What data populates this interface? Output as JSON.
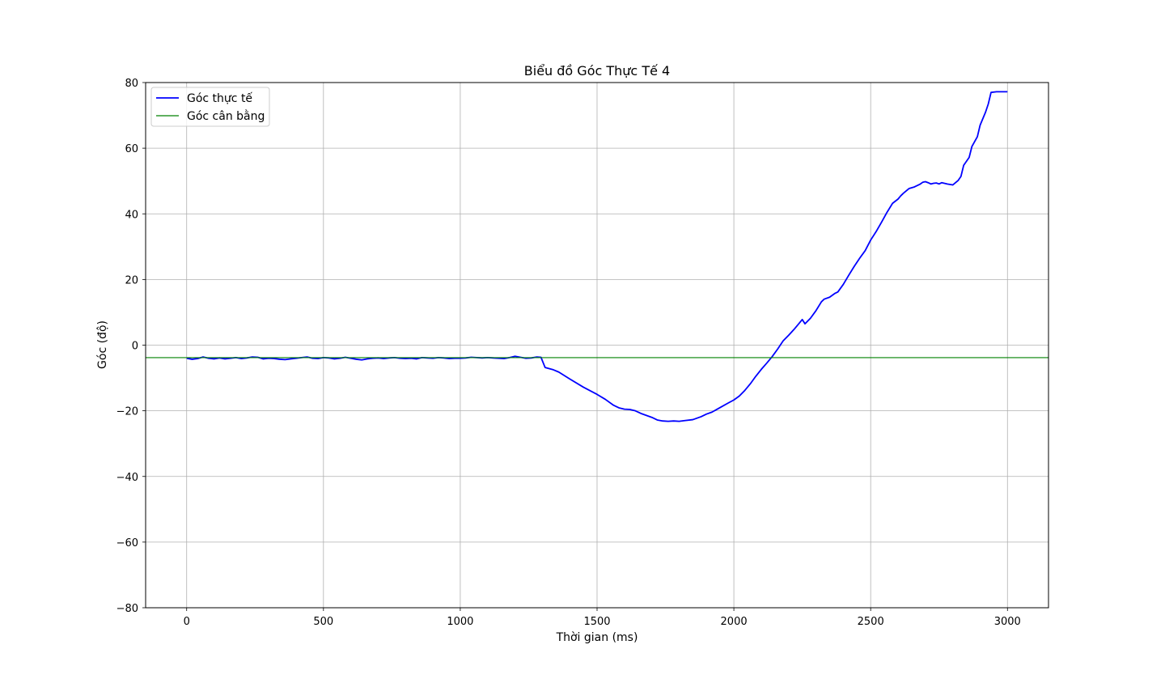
{
  "chart_data": {
    "type": "line",
    "title": "Biểu đồ Góc Thực Tế 4",
    "xlabel": "Thời gian (ms)",
    "ylabel": "Góc (độ)",
    "xlim": [
      -150,
      3150
    ],
    "ylim": [
      -80,
      80
    ],
    "xticks": [
      0,
      500,
      1000,
      1500,
      2000,
      2500,
      3000
    ],
    "yticks": [
      -80,
      -60,
      -40,
      -20,
      0,
      20,
      40,
      60,
      80
    ],
    "grid": true,
    "legend_position": "top-left",
    "series": [
      {
        "name": "Góc thực tế",
        "color": "#0000ff",
        "points": [
          [
            0,
            -4.0
          ],
          [
            20,
            -4.3
          ],
          [
            40,
            -4.1
          ],
          [
            60,
            -3.6
          ],
          [
            80,
            -4.0
          ],
          [
            100,
            -4.2
          ],
          [
            120,
            -3.9
          ],
          [
            140,
            -4.2
          ],
          [
            160,
            -4.0
          ],
          [
            180,
            -3.8
          ],
          [
            200,
            -4.1
          ],
          [
            220,
            -3.9
          ],
          [
            240,
            -3.6
          ],
          [
            260,
            -3.7
          ],
          [
            280,
            -4.2
          ],
          [
            300,
            -4.0
          ],
          [
            320,
            -4.1
          ],
          [
            340,
            -4.3
          ],
          [
            360,
            -4.4
          ],
          [
            380,
            -4.2
          ],
          [
            400,
            -4.0
          ],
          [
            420,
            -3.8
          ],
          [
            440,
            -3.6
          ],
          [
            460,
            -4.0
          ],
          [
            480,
            -4.1
          ],
          [
            500,
            -3.8
          ],
          [
            520,
            -3.9
          ],
          [
            540,
            -4.2
          ],
          [
            560,
            -4.0
          ],
          [
            580,
            -3.7
          ],
          [
            600,
            -4.0
          ],
          [
            620,
            -4.3
          ],
          [
            640,
            -4.5
          ],
          [
            660,
            -4.2
          ],
          [
            680,
            -4.0
          ],
          [
            700,
            -3.9
          ],
          [
            720,
            -4.1
          ],
          [
            740,
            -3.9
          ],
          [
            760,
            -3.8
          ],
          [
            780,
            -4.0
          ],
          [
            800,
            -4.1
          ],
          [
            820,
            -4.0
          ],
          [
            840,
            -4.2
          ],
          [
            860,
            -3.8
          ],
          [
            880,
            -3.9
          ],
          [
            900,
            -4.0
          ],
          [
            920,
            -3.8
          ],
          [
            940,
            -3.9
          ],
          [
            960,
            -4.1
          ],
          [
            980,
            -4.0
          ],
          [
            1000,
            -4.0
          ],
          [
            1020,
            -3.9
          ],
          [
            1040,
            -3.7
          ],
          [
            1060,
            -3.8
          ],
          [
            1080,
            -3.9
          ],
          [
            1100,
            -3.8
          ],
          [
            1120,
            -3.9
          ],
          [
            1140,
            -4.0
          ],
          [
            1160,
            -4.1
          ],
          [
            1180,
            -3.8
          ],
          [
            1200,
            -3.4
          ],
          [
            1220,
            -3.7
          ],
          [
            1240,
            -4.0
          ],
          [
            1260,
            -3.9
          ],
          [
            1280,
            -3.6
          ],
          [
            1295,
            -3.7
          ],
          [
            1310,
            -6.8
          ],
          [
            1340,
            -7.5
          ],
          [
            1360,
            -8.2
          ],
          [
            1400,
            -10.3
          ],
          [
            1450,
            -12.8
          ],
          [
            1500,
            -15.0
          ],
          [
            1530,
            -16.5
          ],
          [
            1560,
            -18.3
          ],
          [
            1580,
            -19.1
          ],
          [
            1600,
            -19.5
          ],
          [
            1620,
            -19.6
          ],
          [
            1640,
            -20.0
          ],
          [
            1660,
            -20.8
          ],
          [
            1700,
            -22.0
          ],
          [
            1720,
            -22.8
          ],
          [
            1740,
            -23.1
          ],
          [
            1760,
            -23.2
          ],
          [
            1780,
            -23.1
          ],
          [
            1800,
            -23.2
          ],
          [
            1820,
            -23.0
          ],
          [
            1850,
            -22.7
          ],
          [
            1880,
            -21.8
          ],
          [
            1900,
            -21.0
          ],
          [
            1920,
            -20.4
          ],
          [
            1950,
            -19.0
          ],
          [
            1980,
            -17.6
          ],
          [
            2000,
            -16.7
          ],
          [
            2020,
            -15.5
          ],
          [
            2040,
            -13.8
          ],
          [
            2060,
            -11.8
          ],
          [
            2080,
            -9.5
          ],
          [
            2100,
            -7.4
          ],
          [
            2120,
            -5.5
          ],
          [
            2140,
            -3.5
          ],
          [
            2160,
            -1.2
          ],
          [
            2180,
            1.3
          ],
          [
            2200,
            3.0
          ],
          [
            2220,
            4.8
          ],
          [
            2240,
            6.8
          ],
          [
            2250,
            7.8
          ],
          [
            2260,
            6.5
          ],
          [
            2280,
            8.2
          ],
          [
            2300,
            10.5
          ],
          [
            2320,
            13.2
          ],
          [
            2330,
            14.0
          ],
          [
            2350,
            14.6
          ],
          [
            2370,
            15.8
          ],
          [
            2380,
            16.2
          ],
          [
            2400,
            18.5
          ],
          [
            2420,
            21.3
          ],
          [
            2440,
            24.0
          ],
          [
            2460,
            26.5
          ],
          [
            2480,
            28.8
          ],
          [
            2500,
            32.0
          ],
          [
            2520,
            34.6
          ],
          [
            2540,
            37.5
          ],
          [
            2560,
            40.5
          ],
          [
            2580,
            43.2
          ],
          [
            2600,
            44.5
          ],
          [
            2610,
            45.5
          ],
          [
            2620,
            46.3
          ],
          [
            2640,
            47.7
          ],
          [
            2660,
            48.2
          ],
          [
            2680,
            49.0
          ],
          [
            2690,
            49.6
          ],
          [
            2700,
            49.8
          ],
          [
            2710,
            49.5
          ],
          [
            2720,
            49.1
          ],
          [
            2730,
            49.3
          ],
          [
            2740,
            49.4
          ],
          [
            2750,
            49.1
          ],
          [
            2760,
            49.5
          ],
          [
            2780,
            49.1
          ],
          [
            2800,
            48.8
          ],
          [
            2820,
            50.2
          ],
          [
            2830,
            51.4
          ],
          [
            2840,
            54.8
          ],
          [
            2860,
            57.2
          ],
          [
            2870,
            60.5
          ],
          [
            2890,
            63.5
          ],
          [
            2900,
            67.0
          ],
          [
            2920,
            71.0
          ],
          [
            2930,
            73.5
          ],
          [
            2940,
            77.0
          ],
          [
            2960,
            77.2
          ],
          [
            3000,
            77.2
          ]
        ]
      },
      {
        "name": "Góc cân bằng",
        "color": "#008000",
        "y_constant": -3.8
      }
    ]
  }
}
